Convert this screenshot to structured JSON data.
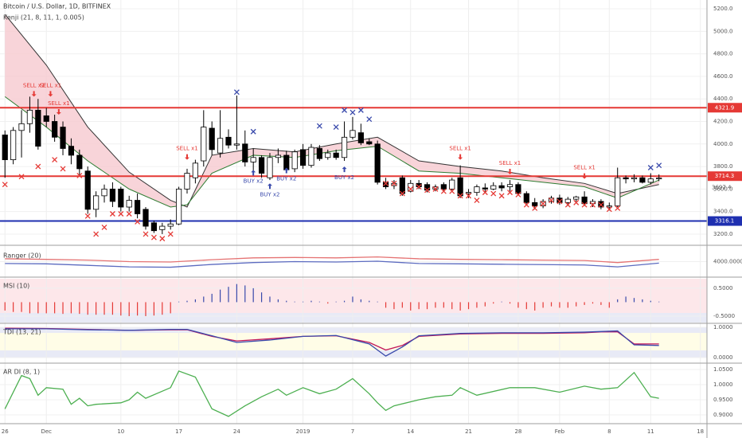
{
  "header": {
    "title": "Bitcoin / U.S. Dollar, 1D, BITFINEX"
  },
  "chart_data": [
    {
      "type": "candlestick",
      "title": "Kenji (21, 8, 11, 1, 0.005)",
      "xlim": [
        -0.6,
        84.8
      ],
      "ylim": [
        3122,
        5278
      ],
      "xticks": [
        {
          "value": 0,
          "label": "26"
        },
        {
          "value": 5,
          "label": "Dec"
        },
        {
          "value": 14,
          "label": "10"
        },
        {
          "value": 21,
          "label": "17"
        },
        {
          "value": 28,
          "label": "24"
        },
        {
          "value": 36,
          "label": "2019"
        },
        {
          "value": 42,
          "label": "7"
        },
        {
          "value": 49,
          "label": "14"
        },
        {
          "value": 56,
          "label": "21"
        },
        {
          "value": 62,
          "label": "28"
        },
        {
          "value": 67,
          "label": "Feb"
        },
        {
          "value": 73,
          "label": "8"
        },
        {
          "value": 78,
          "label": "11"
        },
        {
          "value": 84,
          "label": "18"
        }
      ],
      "yticks": [
        {
          "value": 3200,
          "label": "3200.0"
        },
        {
          "value": 3400,
          "label": "3400.0"
        },
        {
          "value": 3600,
          "label": "3600.0"
        },
        {
          "value": 3800,
          "label": "3800.0"
        },
        {
          "value": 4000,
          "label": "4000.0"
        },
        {
          "value": 4200,
          "label": "4200.0"
        },
        {
          "value": 4400,
          "label": "4400.0"
        },
        {
          "value": 4600,
          "label": "4600.0"
        },
        {
          "value": 4800,
          "label": "4800.0"
        },
        {
          "value": 5000,
          "label": "5000.0"
        },
        {
          "value": 5200,
          "label": "5200.0"
        }
      ],
      "up_color": "#ffffff",
      "down_color": "#000000",
      "ohlc": [
        [
          4080,
          4120,
          3700,
          3860
        ],
        [
          3860,
          4150,
          3820,
          4120
        ],
        [
          4120,
          4300,
          3880,
          4180
        ],
        [
          4180,
          4420,
          4100,
          4300
        ],
        [
          4300,
          4400,
          3950,
          3980
        ],
        [
          4250,
          4320,
          4150,
          4200
        ],
        [
          4200,
          4260,
          4020,
          4060
        ],
        [
          4150,
          4200,
          3900,
          3960
        ],
        [
          3980,
          4050,
          3820,
          3900
        ],
        [
          3900,
          3950,
          3720,
          3780
        ],
        [
          3760,
          3800,
          3380,
          3420
        ],
        [
          3420,
          3580,
          3350,
          3540
        ],
        [
          3540,
          3640,
          3480,
          3600
        ],
        [
          3600,
          3660,
          3440,
          3490
        ],
        [
          3600,
          3620,
          3400,
          3440
        ],
        [
          3440,
          3540,
          3400,
          3500
        ],
        [
          3500,
          3560,
          3340,
          3380
        ],
        [
          3420,
          3440,
          3240,
          3270
        ],
        [
          3300,
          3320,
          3210,
          3230
        ],
        [
          3240,
          3300,
          3200,
          3270
        ],
        [
          3270,
          3330,
          3240,
          3290
        ],
        [
          3290,
          3620,
          3280,
          3600
        ],
        [
          3600,
          3780,
          3560,
          3740
        ],
        [
          3700,
          3860,
          3650,
          3830
        ],
        [
          3850,
          4300,
          3800,
          4150
        ],
        [
          4140,
          4200,
          3900,
          3950
        ],
        [
          3920,
          4300,
          3880,
          4050
        ],
        [
          4060,
          4130,
          3960,
          3990
        ],
        [
          3990,
          4430,
          3950,
          4000
        ],
        [
          4000,
          4120,
          3800,
          3840
        ],
        [
          3840,
          3960,
          3760,
          3880
        ],
        [
          3880,
          3900,
          3700,
          3740
        ],
        [
          3700,
          3920,
          3680,
          3880
        ],
        [
          3880,
          3960,
          3830,
          3900
        ],
        [
          3900,
          3940,
          3740,
          3770
        ],
        [
          3780,
          3950,
          3750,
          3930
        ],
        [
          3950,
          4000,
          3780,
          3810
        ],
        [
          3810,
          4000,
          3790,
          3970
        ],
        [
          3960,
          3990,
          3850,
          3870
        ],
        [
          3880,
          3950,
          3860,
          3920
        ],
        [
          3920,
          3950,
          3860,
          3880
        ],
        [
          3880,
          4200,
          3850,
          4060
        ],
        [
          4060,
          4240,
          4040,
          4120
        ],
        [
          4100,
          4180,
          3990,
          4010
        ],
        [
          4020,
          4050,
          3990,
          4000
        ],
        [
          4000,
          4030,
          3640,
          3660
        ],
        [
          3660,
          3700,
          3600,
          3620
        ],
        [
          3630,
          3680,
          3600,
          3650
        ],
        [
          3700,
          3720,
          3540,
          3560
        ],
        [
          3580,
          3680,
          3570,
          3650
        ],
        [
          3650,
          3680,
          3600,
          3620
        ],
        [
          3640,
          3660,
          3570,
          3590
        ],
        [
          3600,
          3640,
          3580,
          3620
        ],
        [
          3640,
          3660,
          3580,
          3600
        ],
        [
          3600,
          3700,
          3590,
          3680
        ],
        [
          3700,
          3810,
          3520,
          3540
        ],
        [
          3560,
          3600,
          3520,
          3570
        ],
        [
          3570,
          3640,
          3540,
          3620
        ],
        [
          3610,
          3650,
          3570,
          3600
        ],
        [
          3600,
          3660,
          3590,
          3630
        ],
        [
          3630,
          3660,
          3580,
          3610
        ],
        [
          3620,
          3680,
          3580,
          3640
        ],
        [
          3640,
          3660,
          3550,
          3560
        ],
        [
          3560,
          3580,
          3470,
          3480
        ],
        [
          3480,
          3520,
          3420,
          3450
        ],
        [
          3450,
          3510,
          3430,
          3490
        ],
        [
          3490,
          3540,
          3470,
          3520
        ],
        [
          3520,
          3550,
          3460,
          3480
        ],
        [
          3480,
          3530,
          3450,
          3510
        ],
        [
          3510,
          3540,
          3490,
          3530
        ],
        [
          3530,
          3580,
          3450,
          3470
        ],
        [
          3470,
          3510,
          3440,
          3490
        ],
        [
          3490,
          3510,
          3420,
          3440
        ],
        [
          3440,
          3480,
          3410,
          3450
        ],
        [
          3450,
          3790,
          3440,
          3700
        ],
        [
          3700,
          3720,
          3650,
          3690
        ],
        [
          3690,
          3730,
          3660,
          3700
        ],
        [
          3700,
          3720,
          3650,
          3660
        ],
        [
          3660,
          3740,
          3640,
          3690
        ],
        [
          3690,
          3730,
          3670,
          3697.4
        ]
      ],
      "cloud": {
        "x": [
          0,
          5,
          10,
          15,
          20,
          22,
          25,
          30,
          35,
          40,
          45,
          50,
          55,
          60,
          65,
          70,
          74,
          79
        ],
        "fill": "#f6c9cf",
        "series": [
          {
            "color": "#333333",
            "values": [
              5150,
              4700,
              4150,
              3750,
              3500,
              3440,
              3900,
              3960,
              3930,
              4000,
              4060,
              3850,
              3800,
              3760,
              3700,
              3650,
              3560,
              3640
            ]
          },
          {
            "color": "#2e7d32",
            "values": [
              4420,
              4150,
              3850,
              3600,
              3440,
              3460,
              3740,
              3900,
              3880,
              3940,
              3980,
              3760,
              3740,
              3700,
              3660,
              3620,
              3520,
              3680
            ]
          }
        ]
      },
      "levels": [
        {
          "value": 4321.9,
          "color": "#e53935"
        },
        {
          "value": 3714.3,
          "color": "#e53935"
        },
        {
          "value": 3316.1,
          "color": "#1e2fb0"
        }
      ],
      "last_price": 3697.4,
      "sell_signals": {
        "color": "#e53935",
        "items": [
          {
            "x": 3.5,
            "price": 4420,
            "label": "SELL x1"
          },
          {
            "x": 5.5,
            "price": 4420,
            "label": "SELL x1"
          },
          {
            "x": 6.5,
            "price": 4260,
            "label": "SELL x1"
          },
          {
            "x": 22,
            "price": 3860,
            "label": "SELL x1"
          },
          {
            "x": 55,
            "price": 3860,
            "label": "SELL x1"
          },
          {
            "x": 61,
            "price": 3730,
            "label": "SELL x1"
          },
          {
            "x": 70,
            "price": 3690,
            "label": "SELL x1"
          }
        ]
      },
      "buy_signals": {
        "color": "#3949ab",
        "items": [
          {
            "x": 30,
            "price": 3770,
            "label": "BUY x2"
          },
          {
            "x": 32,
            "price": 3650,
            "label": "BUY x2"
          },
          {
            "x": 34,
            "price": 3790,
            "label": "BUY x2"
          },
          {
            "x": 41,
            "price": 3800,
            "label": "BUY x2"
          }
        ]
      },
      "red_crosses": {
        "color": "#e53935",
        "x": [
          0,
          2,
          4,
          6,
          7,
          9,
          10,
          11,
          12,
          13,
          14,
          15,
          16,
          17,
          18,
          19,
          20,
          46,
          47,
          48,
          49,
          50,
          51,
          52,
          53,
          54,
          55,
          56,
          57,
          58,
          59,
          60,
          61,
          62,
          63,
          64,
          65,
          66,
          67,
          68,
          69,
          70,
          71,
          72,
          73,
          74
        ],
        "y": [
          3640,
          3710,
          3800,
          3860,
          3780,
          3720,
          3360,
          3200,
          3260,
          3380,
          3380,
          3380,
          3310,
          3200,
          3170,
          3160,
          3200,
          3650,
          3650,
          3560,
          3600,
          3620,
          3590,
          3600,
          3580,
          3580,
          3540,
          3540,
          3500,
          3570,
          3560,
          3540,
          3570,
          3550,
          3460,
          3430,
          3470,
          3500,
          3490,
          3460,
          3480,
          3460,
          3460,
          3460,
          3420,
          3430
        ]
      },
      "blue_crosses": {
        "color": "#3949ab",
        "x": [
          28,
          30,
          38,
          40,
          41,
          42,
          43,
          44,
          78,
          79
        ],
        "y": [
          4460,
          4110,
          4160,
          4150,
          4300,
          4280,
          4300,
          4220,
          3790,
          3810
        ]
      }
    },
    {
      "type": "line",
      "title": "Ranger (20)",
      "ylim": [
        3300,
        4700
      ],
      "yticks": [
        {
          "value": 4000,
          "label": "4000.0000"
        }
      ],
      "x": [
        0,
        5,
        10,
        15,
        20,
        25,
        30,
        35,
        40,
        45,
        50,
        55,
        60,
        65,
        70,
        74,
        79
      ],
      "series": [
        {
          "color": "#e57373",
          "values": [
            4150,
            4120,
            4080,
            4000,
            3980,
            4100,
            4200,
            4220,
            4200,
            4250,
            4150,
            4120,
            4100,
            4080,
            4060,
            3950,
            4120
          ]
        },
        {
          "color": "#5c6bc0",
          "values": [
            3900,
            3880,
            3800,
            3720,
            3700,
            3850,
            3950,
            4000,
            3980,
            4020,
            3900,
            3880,
            3860,
            3840,
            3820,
            3720,
            3920
          ]
        }
      ]
    },
    {
      "type": "bar",
      "title": "MSI (10)",
      "ylim": [
        -0.73,
        0.84
      ],
      "yticks": [
        {
          "value": 0.5,
          "label": "0.5000"
        },
        {
          "value": -0.5,
          "label": "-0.5000"
        }
      ],
      "positive_color": "#3949ab",
      "negative_color": "#e53935",
      "values": [
        -0.3,
        -0.35,
        -0.35,
        -0.4,
        -0.4,
        -0.4,
        -0.4,
        -0.42,
        -0.4,
        -0.42,
        -0.45,
        -0.45,
        -0.45,
        -0.45,
        -0.48,
        -0.5,
        -0.48,
        -0.5,
        -0.48,
        -0.45,
        -0.4,
        0.02,
        0.05,
        0.1,
        0.2,
        0.3,
        0.45,
        0.55,
        0.65,
        0.6,
        0.5,
        0.35,
        0.2,
        0.1,
        0.05,
        0.02,
        0.02,
        0.05,
        0.02,
        -0.05,
        0.02,
        0.05,
        0.2,
        0.1,
        0.05,
        0.02,
        -0.2,
        -0.25,
        -0.2,
        -0.3,
        -0.25,
        -0.25,
        -0.2,
        -0.2,
        -0.25,
        -0.3,
        -0.25,
        -0.2,
        -0.15,
        -0.05,
        0.02,
        -0.05,
        -0.2,
        -0.25,
        -0.3,
        -0.2,
        -0.15,
        -0.2,
        -0.2,
        -0.15,
        -0.1,
        -0.05,
        -0.1,
        -0.2,
        0.1,
        0.2,
        0.15,
        0.1,
        0.05,
        0.02
      ]
    },
    {
      "type": "line",
      "title": "TDI (13, 21)",
      "ylim": [
        -0.158,
        1.079
      ],
      "yticks": [
        {
          "value": 1,
          "label": "1.0000"
        },
        {
          "value": 0,
          "label": "0.0000"
        }
      ],
      "x": [
        0,
        5,
        10,
        15,
        20,
        22,
        25,
        28,
        32,
        36,
        40,
        44,
        46,
        48,
        50,
        55,
        60,
        65,
        70,
        72,
        74,
        76,
        79
      ],
      "series": [
        {
          "color": "#c2185b",
          "values": [
            0.97,
            0.96,
            0.93,
            0.9,
            0.92,
            0.92,
            0.7,
            0.55,
            0.62,
            0.7,
            0.72,
            0.5,
            0.25,
            0.4,
            0.7,
            0.78,
            0.8,
            0.8,
            0.82,
            0.85,
            0.85,
            0.45,
            0.45
          ]
        },
        {
          "color": "#3949ab",
          "values": [
            0.95,
            0.95,
            0.92,
            0.9,
            0.93,
            0.93,
            0.72,
            0.5,
            0.58,
            0.7,
            0.73,
            0.45,
            0.05,
            0.35,
            0.72,
            0.8,
            0.82,
            0.82,
            0.84,
            0.86,
            0.88,
            0.42,
            0.4
          ]
        }
      ]
    },
    {
      "type": "line",
      "title": "AR DI (8, 1)",
      "ylim": [
        0.8763,
        1.0658
      ],
      "yticks": [
        {
          "value": 1.05,
          "label": "1.0500"
        },
        {
          "value": 1,
          "label": "1.0000"
        },
        {
          "value": 0.95,
          "label": "0.9500"
        },
        {
          "value": 0.9,
          "label": "0.9000"
        }
      ],
      "x": [
        0,
        2,
        3,
        4,
        5,
        7,
        8,
        9,
        10,
        11,
        14,
        15,
        16,
        17,
        20,
        21,
        23,
        25,
        27,
        29,
        31,
        33,
        34,
        36,
        38,
        40,
        42,
        44,
        45,
        46,
        47,
        50,
        52,
        54,
        55,
        57,
        61,
        64,
        67,
        70,
        72,
        74,
        76,
        78,
        79
      ],
      "series": [
        {
          "color": "#4caf50",
          "values": [
            0.92,
            1.03,
            1.02,
            0.965,
            0.99,
            0.985,
            0.935,
            0.955,
            0.93,
            0.935,
            0.94,
            0.95,
            0.975,
            0.955,
            0.99,
            1.045,
            1.025,
            0.92,
            0.895,
            0.93,
            0.96,
            0.985,
            0.965,
            0.99,
            0.97,
            0.985,
            1.02,
            0.97,
            0.94,
            0.915,
            0.93,
            0.95,
            0.96,
            0.965,
            0.99,
            0.965,
            0.99,
            0.99,
            0.975,
            0.995,
            0.985,
            0.99,
            1.04,
            0.96,
            0.955
          ]
        }
      ]
    }
  ]
}
